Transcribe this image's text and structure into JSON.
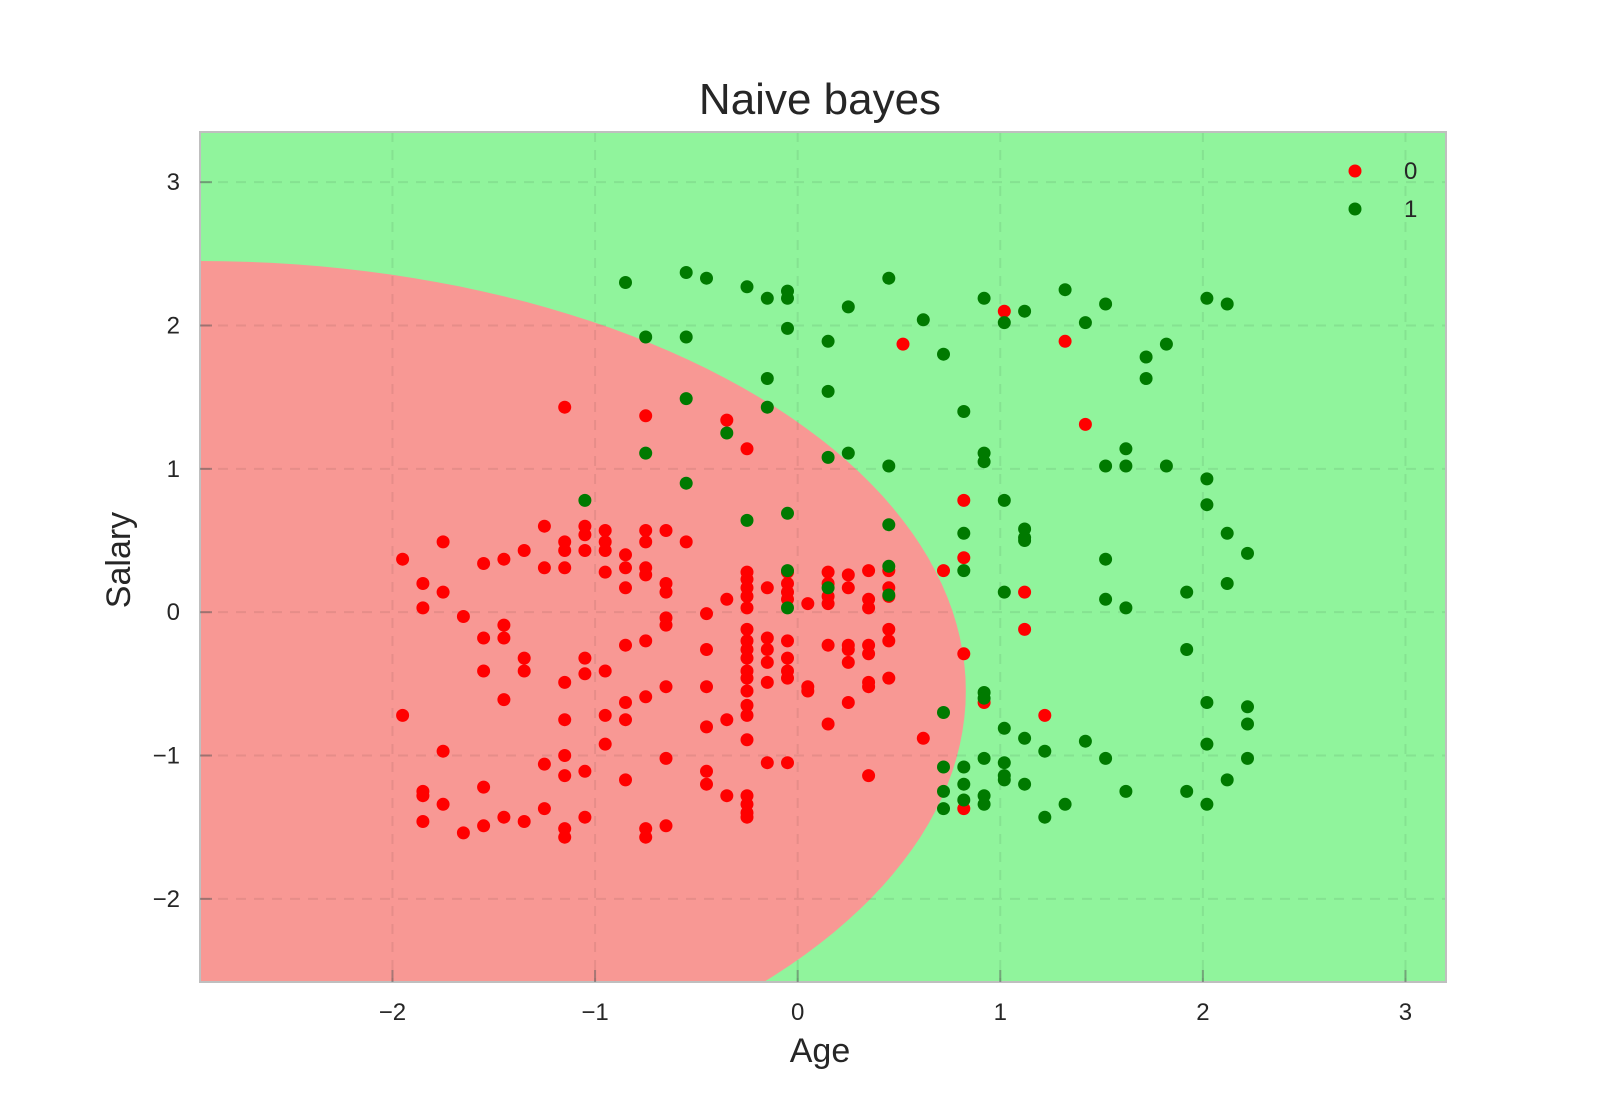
{
  "chart_data": {
    "type": "scatter",
    "title": "Naive bayes",
    "xlabel": "Age",
    "ylabel": "Salary",
    "xlim": [
      -2.95,
      3.2
    ],
    "ylim": [
      -2.58,
      3.35
    ],
    "xticks": [
      -2,
      -1,
      0,
      1,
      2,
      3
    ],
    "yticks": [
      -2,
      -1,
      0,
      1,
      2,
      3
    ],
    "xtick_labels": [
      "−2",
      "−1",
      "0",
      "1",
      "2",
      "3"
    ],
    "ytick_labels": [
      "−2",
      "−1",
      "0",
      "1",
      "2",
      "3"
    ],
    "grid": true,
    "legend_position": "top-right",
    "background_colors": {
      "class_0_region": "#f89894",
      "class_1_region": "#90f49c"
    },
    "decision_boundary": {
      "shape": "ellipse",
      "center": [
        -2.95,
        -0.55
      ],
      "semi_axis_x": 3.78,
      "semi_axis_y": 3.0,
      "inside_class": "0"
    },
    "series": [
      {
        "name": "0",
        "color": "#ff0000",
        "points": [
          [
            -1.95,
            0.37
          ],
          [
            -1.85,
            0.2
          ],
          [
            -1.85,
            0.03
          ],
          [
            -1.75,
            0.49
          ],
          [
            -1.75,
            0.14
          ],
          [
            -1.65,
            -0.03
          ],
          [
            -1.55,
            0.34
          ],
          [
            -1.55,
            -0.18
          ],
          [
            -1.55,
            -0.41
          ],
          [
            -1.45,
            0.37
          ],
          [
            -1.45,
            -0.09
          ],
          [
            -1.45,
            -0.18
          ],
          [
            -1.35,
            0.43
          ],
          [
            -1.35,
            -0.32
          ],
          [
            -1.35,
            -0.41
          ],
          [
            -1.25,
            0.6
          ],
          [
            -1.25,
            0.31
          ],
          [
            -1.15,
            0.49
          ],
          [
            -1.15,
            0.43
          ],
          [
            -1.15,
            0.31
          ],
          [
            -1.05,
            0.6
          ],
          [
            -1.05,
            0.54
          ],
          [
            -1.05,
            0.43
          ],
          [
            -1.05,
            -0.32
          ],
          [
            -0.95,
            0.57
          ],
          [
            -0.95,
            0.49
          ],
          [
            -0.95,
            0.43
          ],
          [
            -0.95,
            0.28
          ],
          [
            -0.85,
            0.4
          ],
          [
            -0.85,
            0.31
          ],
          [
            -0.85,
            0.17
          ],
          [
            -0.75,
            0.57
          ],
          [
            -0.75,
            0.49
          ],
          [
            -0.75,
            0.31
          ],
          [
            -0.75,
            0.26
          ],
          [
            -0.65,
            0.57
          ],
          [
            -0.65,
            0.2
          ],
          [
            -0.65,
            0.14
          ],
          [
            -0.55,
            0.49
          ],
          [
            -0.35,
            0.09
          ],
          [
            -0.25,
            0.28
          ],
          [
            -0.25,
            0.23
          ],
          [
            -0.25,
            0.17
          ],
          [
            -0.25,
            0.11
          ],
          [
            -0.25,
            0.03
          ],
          [
            -0.15,
            0.17
          ],
          [
            -0.05,
            0.28
          ],
          [
            -0.05,
            0.2
          ],
          [
            -0.05,
            0.14
          ],
          [
            -0.05,
            0.09
          ],
          [
            0.05,
            0.06
          ],
          [
            0.15,
            0.28
          ],
          [
            0.15,
            0.2
          ],
          [
            0.15,
            0.11
          ],
          [
            0.15,
            0.06
          ],
          [
            0.25,
            0.26
          ],
          [
            0.25,
            0.17
          ],
          [
            0.35,
            0.29
          ],
          [
            0.35,
            0.09
          ],
          [
            0.35,
            0.03
          ],
          [
            0.45,
            0.29
          ],
          [
            0.45,
            0.17
          ],
          [
            0.45,
            0.11
          ],
          [
            -0.65,
            -0.04
          ],
          [
            -0.65,
            -0.09
          ],
          [
            -0.75,
            -0.2
          ],
          [
            -0.85,
            -0.23
          ],
          [
            -0.45,
            -0.01
          ],
          [
            -0.45,
            -0.26
          ],
          [
            -0.25,
            -0.12
          ],
          [
            -0.25,
            -0.2
          ],
          [
            -0.25,
            -0.26
          ],
          [
            -0.25,
            -0.32
          ],
          [
            -0.25,
            -0.41
          ],
          [
            -0.25,
            -0.46
          ],
          [
            -0.25,
            -0.55
          ],
          [
            -0.15,
            -0.18
          ],
          [
            -0.15,
            -0.26
          ],
          [
            -0.15,
            -0.35
          ],
          [
            -0.05,
            -0.2
          ],
          [
            -0.05,
            -0.32
          ],
          [
            -0.05,
            -0.41
          ],
          [
            -0.05,
            -0.46
          ],
          [
            0.05,
            -0.52
          ],
          [
            0.05,
            -0.55
          ],
          [
            0.15,
            -0.23
          ],
          [
            0.25,
            -0.23
          ],
          [
            0.25,
            -0.26
          ],
          [
            0.25,
            -0.35
          ],
          [
            0.35,
            -0.23
          ],
          [
            0.35,
            -0.29
          ],
          [
            0.35,
            -0.49
          ],
          [
            0.35,
            -0.52
          ],
          [
            0.45,
            -0.12
          ],
          [
            0.45,
            -0.2
          ],
          [
            0.45,
            -0.46
          ],
          [
            -0.15,
            -0.49
          ],
          [
            -0.25,
            -0.65
          ],
          [
            -0.25,
            -0.72
          ],
          [
            -0.35,
            -0.75
          ],
          [
            -0.45,
            -0.52
          ],
          [
            -0.45,
            -0.8
          ],
          [
            -0.65,
            -0.52
          ],
          [
            -0.75,
            -0.59
          ],
          [
            -0.85,
            -0.63
          ],
          [
            -0.85,
            -0.75
          ],
          [
            -0.95,
            -0.41
          ],
          [
            -0.95,
            -0.72
          ],
          [
            -1.05,
            -0.43
          ],
          [
            -1.15,
            -0.49
          ],
          [
            -1.15,
            -0.75
          ],
          [
            -1.45,
            -0.61
          ],
          [
            -1.95,
            -0.72
          ],
          [
            -1.75,
            -0.97
          ],
          [
            -1.85,
            -1.28
          ],
          [
            -1.85,
            -1.25
          ],
          [
            -1.85,
            -1.46
          ],
          [
            -1.75,
            -1.34
          ],
          [
            -1.65,
            -1.54
          ],
          [
            -1.55,
            -1.22
          ],
          [
            -1.55,
            -1.49
          ],
          [
            -1.45,
            -1.43
          ],
          [
            -1.35,
            -1.46
          ],
          [
            -1.25,
            -1.06
          ],
          [
            -1.25,
            -1.37
          ],
          [
            -1.15,
            -1.0
          ],
          [
            -1.15,
            -1.14
          ],
          [
            -1.15,
            -1.51
          ],
          [
            -1.15,
            -1.57
          ],
          [
            -1.05,
            -1.11
          ],
          [
            -1.05,
            -1.43
          ],
          [
            -0.95,
            -0.92
          ],
          [
            -0.85,
            -1.17
          ],
          [
            -0.75,
            -1.51
          ],
          [
            -0.75,
            -1.57
          ],
          [
            -0.65,
            -1.02
          ],
          [
            -0.65,
            -1.49
          ],
          [
            -0.45,
            -1.11
          ],
          [
            -0.45,
            -1.2
          ],
          [
            -0.35,
            -1.28
          ],
          [
            -0.25,
            -1.28
          ],
          [
            -0.25,
            -1.34
          ],
          [
            -0.25,
            -1.4
          ],
          [
            -0.25,
            -1.43
          ],
          [
            -0.25,
            -0.89
          ],
          [
            -0.15,
            -1.05
          ],
          [
            -0.05,
            -1.05
          ],
          [
            0.15,
            -0.78
          ],
          [
            0.25,
            -0.63
          ],
          [
            0.35,
            -1.14
          ],
          [
            0.62,
            -0.88
          ],
          [
            0.72,
            0.29
          ],
          [
            0.82,
            0.38
          ],
          [
            0.82,
            0.78
          ],
          [
            0.82,
            -0.29
          ],
          [
            0.82,
            -1.37
          ],
          [
            0.92,
            -0.63
          ],
          [
            1.12,
            0.14
          ],
          [
            1.12,
            -0.12
          ],
          [
            1.22,
            -0.72
          ],
          [
            1.42,
            1.31
          ],
          [
            1.02,
            2.1
          ],
          [
            1.32,
            1.89
          ],
          [
            0.52,
            1.87
          ],
          [
            -1.15,
            1.43
          ],
          [
            -0.75,
            1.37
          ],
          [
            -0.35,
            1.34
          ],
          [
            -0.25,
            1.14
          ]
        ]
      },
      {
        "name": "1",
        "color": "#007a00",
        "points": [
          [
            -0.85,
            2.3
          ],
          [
            -0.55,
            2.37
          ],
          [
            -0.45,
            2.33
          ],
          [
            -0.25,
            2.27
          ],
          [
            -0.15,
            2.19
          ],
          [
            -0.05,
            2.24
          ],
          [
            -0.05,
            2.19
          ],
          [
            -0.05,
            1.98
          ],
          [
            0.25,
            2.13
          ],
          [
            0.45,
            2.33
          ],
          [
            0.62,
            2.04
          ],
          [
            0.72,
            1.8
          ],
          [
            0.92,
            2.19
          ],
          [
            1.02,
            2.02
          ],
          [
            1.12,
            2.1
          ],
          [
            1.32,
            2.25
          ],
          [
            1.42,
            2.02
          ],
          [
            1.52,
            2.15
          ],
          [
            1.72,
            1.78
          ],
          [
            1.72,
            1.63
          ],
          [
            1.82,
            1.87
          ],
          [
            2.02,
            2.19
          ],
          [
            2.12,
            2.15
          ],
          [
            -0.75,
            1.92
          ],
          [
            -0.55,
            1.92
          ],
          [
            -0.55,
            1.49
          ],
          [
            -0.15,
            1.63
          ],
          [
            -0.15,
            1.43
          ],
          [
            0.15,
            1.89
          ],
          [
            0.15,
            1.54
          ],
          [
            -0.75,
            1.11
          ],
          [
            -0.35,
            1.25
          ],
          [
            -0.55,
            0.9
          ],
          [
            -1.05,
            0.78
          ],
          [
            0.15,
            1.08
          ],
          [
            0.25,
            1.11
          ],
          [
            0.45,
            1.02
          ],
          [
            0.82,
            1.4
          ],
          [
            0.92,
            1.11
          ],
          [
            0.92,
            1.05
          ],
          [
            1.52,
            1.02
          ],
          [
            1.62,
            1.14
          ],
          [
            1.62,
            1.02
          ],
          [
            1.82,
            1.02
          ],
          [
            2.02,
            0.93
          ],
          [
            2.02,
            0.75
          ],
          [
            1.02,
            0.78
          ],
          [
            0.45,
            0.61
          ],
          [
            -0.25,
            0.64
          ],
          [
            -0.05,
            0.69
          ],
          [
            0.82,
            0.55
          ],
          [
            1.12,
            0.58
          ],
          [
            1.12,
            0.52
          ],
          [
            1.12,
            0.5
          ],
          [
            2.12,
            0.55
          ],
          [
            2.22,
            0.41
          ],
          [
            0.45,
            0.32
          ],
          [
            0.45,
            0.12
          ],
          [
            -0.05,
            0.29
          ],
          [
            -0.05,
            0.03
          ],
          [
            0.15,
            0.17
          ],
          [
            0.82,
            0.29
          ],
          [
            1.02,
            0.14
          ],
          [
            1.52,
            0.37
          ],
          [
            1.52,
            0.09
          ],
          [
            1.62,
            0.03
          ],
          [
            1.92,
            0.14
          ],
          [
            2.12,
            0.2
          ],
          [
            1.92,
            -0.26
          ],
          [
            2.02,
            -0.63
          ],
          [
            2.22,
            -0.66
          ],
          [
            2.22,
            -0.78
          ],
          [
            2.02,
            -0.92
          ],
          [
            2.22,
            -1.02
          ],
          [
            2.12,
            -1.17
          ],
          [
            1.92,
            -1.25
          ],
          [
            2.02,
            -1.34
          ],
          [
            1.62,
            -1.25
          ],
          [
            1.52,
            -1.02
          ],
          [
            1.42,
            -0.9
          ],
          [
            1.32,
            -1.34
          ],
          [
            1.22,
            -0.97
          ],
          [
            1.22,
            -1.43
          ],
          [
            1.12,
            -0.88
          ],
          [
            1.12,
            -1.2
          ],
          [
            1.02,
            -0.81
          ],
          [
            1.02,
            -1.05
          ],
          [
            1.02,
            -1.14
          ],
          [
            1.02,
            -1.17
          ],
          [
            0.92,
            -0.56
          ],
          [
            0.92,
            -0.6
          ],
          [
            0.92,
            -1.02
          ],
          [
            0.92,
            -1.28
          ],
          [
            0.92,
            -1.34
          ],
          [
            0.82,
            -1.08
          ],
          [
            0.82,
            -1.2
          ],
          [
            0.82,
            -1.31
          ],
          [
            0.72,
            -0.7
          ],
          [
            0.72,
            -1.08
          ],
          [
            0.72,
            -1.25
          ],
          [
            0.72,
            -1.37
          ]
        ]
      }
    ]
  }
}
